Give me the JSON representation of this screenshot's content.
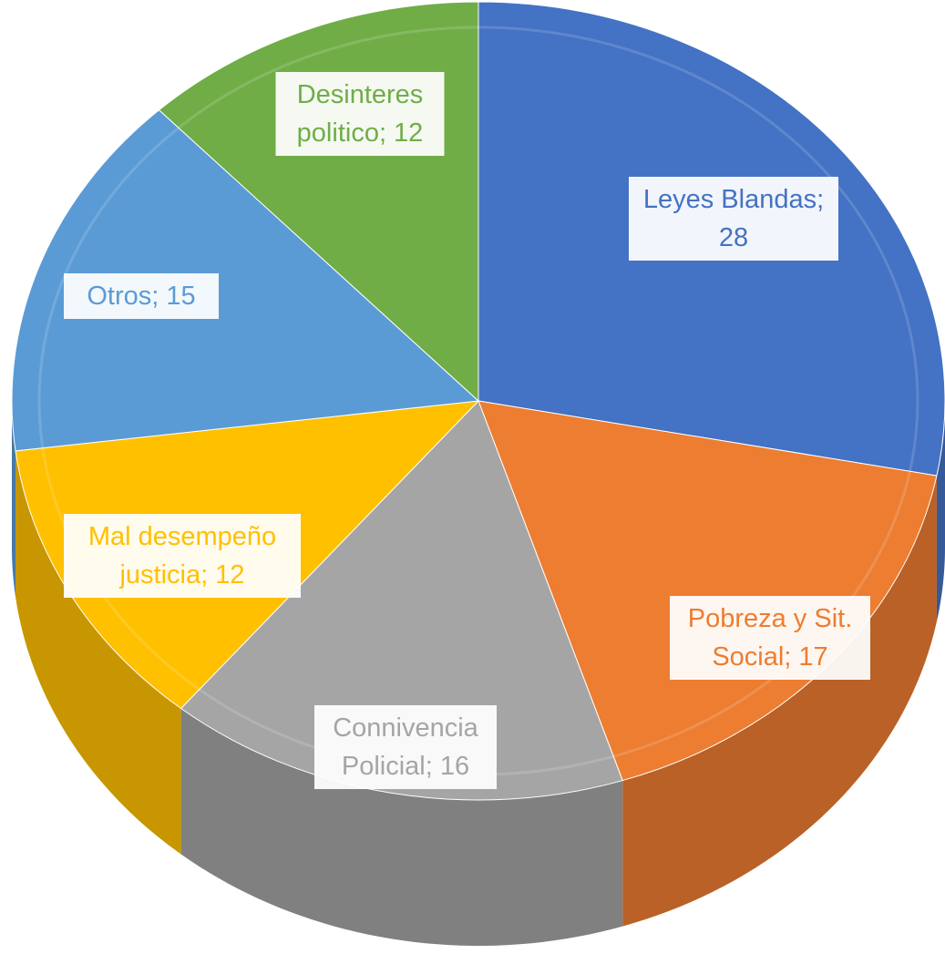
{
  "chart_data": {
    "type": "pie",
    "values": [
      28,
      17,
      16,
      12,
      15,
      12
    ],
    "value_labels": [
      "Leyes Blandas; 28",
      "Pobreza y Sit. Social; 17",
      "Connivencia Policial; 16",
      "Mal desempeño justicia; 12",
      "Otros; 15",
      "Desinteres politico; 12"
    ],
    "colors": [
      "#4472c4",
      "#ed7d31",
      "#a5a5a5",
      "#ffc000",
      "#5b9bd5",
      "#70ad47"
    ]
  }
}
